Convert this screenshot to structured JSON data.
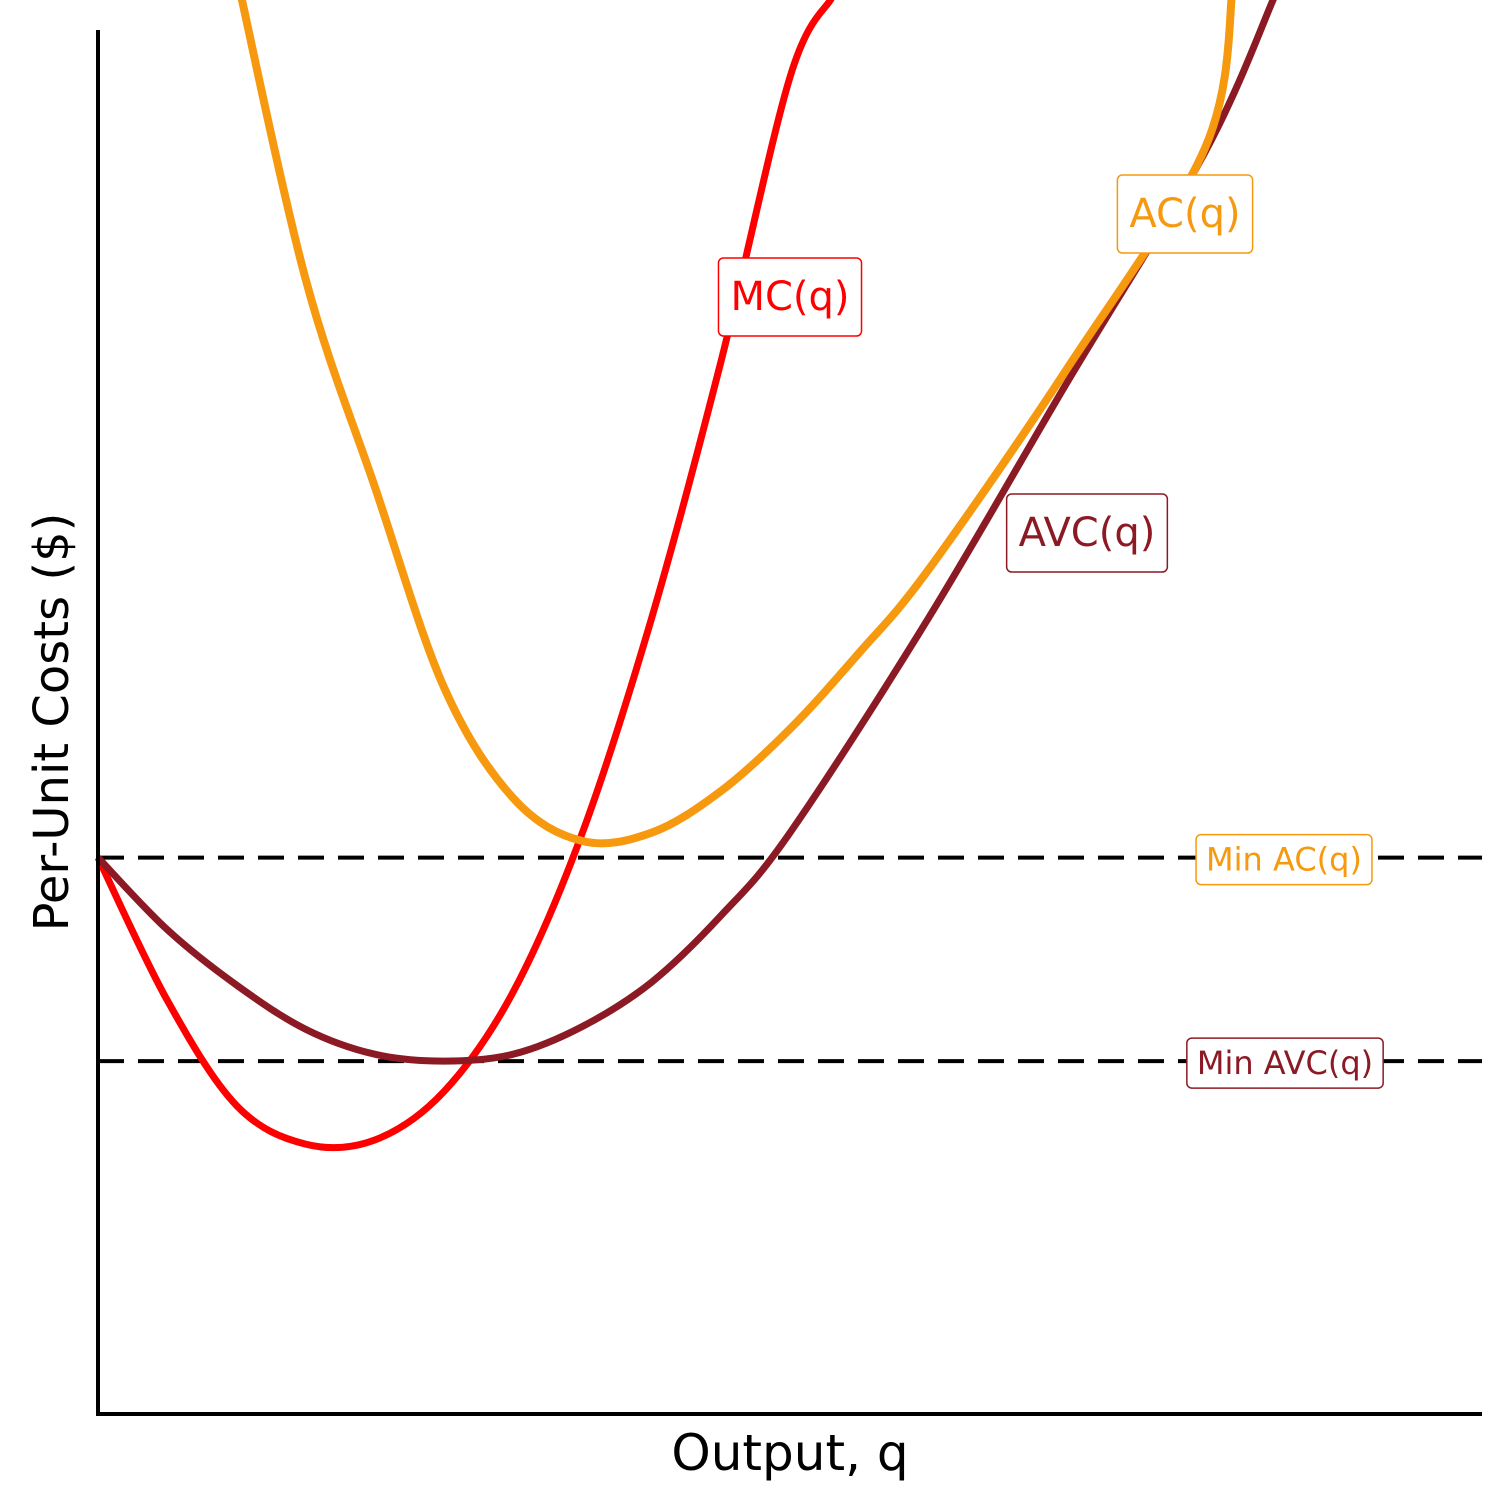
{
  "chart_data": {
    "type": "line",
    "title": "",
    "xlabel": "Output, q",
    "ylabel": "Per-Unit Costs ($)",
    "xlim": [
      0,
      10
    ],
    "ylim": [
      0,
      10
    ],
    "grid": false,
    "ticks_shown": false,
    "series": [
      {
        "name": "MC(q)",
        "color": "#ff0000",
        "points": [
          [
            0,
            4.02
          ],
          [
            0.5,
            2.99
          ],
          [
            1,
            2.23
          ],
          [
            1.5,
            1.95
          ],
          [
            2,
            1.98
          ],
          [
            2.5,
            2.33
          ],
          [
            3,
            3.05
          ],
          [
            3.5,
            4.2
          ],
          [
            4,
            5.75
          ],
          [
            4.5,
            7.6
          ],
          [
            5,
            9.66
          ],
          [
            5.3,
            10.23
          ]
        ]
      },
      {
        "name": "AVC(q)",
        "color": "#8b1a24",
        "points": [
          [
            0,
            4.02
          ],
          [
            0.5,
            3.5
          ],
          [
            1,
            3.1
          ],
          [
            1.5,
            2.78
          ],
          [
            2,
            2.6
          ],
          [
            2.5,
            2.55
          ],
          [
            3,
            2.6
          ],
          [
            3.5,
            2.8
          ],
          [
            4,
            3.12
          ],
          [
            4.5,
            3.6
          ],
          [
            5,
            4.2
          ],
          [
            6,
            5.75
          ],
          [
            7,
            7.45
          ],
          [
            8,
            9.12
          ],
          [
            8.5,
            10.24
          ]
        ]
      },
      {
        "name": "AC(q)",
        "color": "#f7990e",
        "points": [
          [
            1,
            10.4
          ],
          [
            1.5,
            8.2
          ],
          [
            2,
            6.7
          ],
          [
            2.5,
            5.25
          ],
          [
            3,
            4.45
          ],
          [
            3.5,
            4.14
          ],
          [
            4,
            4.2
          ],
          [
            4.5,
            4.5
          ],
          [
            5,
            4.95
          ],
          [
            5.5,
            5.5
          ],
          [
            6,
            6.1
          ],
          [
            7,
            7.55
          ],
          [
            8,
            9.15
          ],
          [
            8.2,
            10.32
          ]
        ]
      }
    ],
    "reference_lines": [
      {
        "label": "Min AC(q)",
        "y": 4.02,
        "color": "#f7990e"
      },
      {
        "label": "Min AVC(q)",
        "y": 2.55,
        "color": "#8b1a24"
      }
    ]
  }
}
